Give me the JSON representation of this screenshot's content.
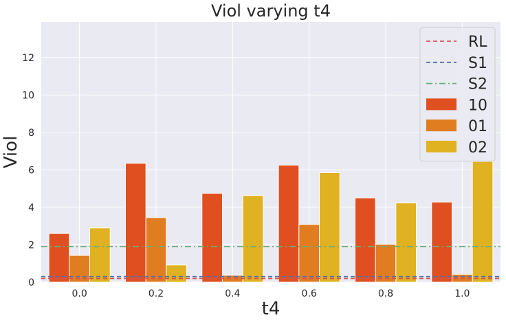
{
  "chart_data": {
    "type": "bar",
    "title": "Viol varying t4",
    "xlabel": "t4",
    "ylabel": "Viol",
    "categories": [
      "0.0",
      "0.2",
      "0.4",
      "0.6",
      "0.8",
      "1.0"
    ],
    "ylim": [
      0,
      13.9
    ],
    "yticks": [
      "0",
      "2",
      "4",
      "6",
      "8",
      "10",
      "12"
    ],
    "grid": true,
    "legend_position": "top-right",
    "series": [
      {
        "name": "10",
        "color": "#e04f1f",
        "values": [
          2.6,
          6.35,
          4.75,
          6.25,
          4.5,
          4.28
        ]
      },
      {
        "name": "01",
        "color": "#e07d20",
        "values": [
          1.43,
          3.45,
          0.37,
          3.08,
          2.02,
          0.42
        ]
      },
      {
        "name": "02",
        "color": "#e0b120",
        "values": [
          2.9,
          0.92,
          4.63,
          5.85,
          4.23,
          6.45
        ]
      }
    ],
    "reference_lines": [
      {
        "name": "RL",
        "value": 0.2,
        "color": "#d9534f",
        "style": "dashed"
      },
      {
        "name": "S1",
        "value": 0.3,
        "color": "#4c72b0",
        "style": "dashed"
      },
      {
        "name": "S2",
        "value": 1.9,
        "color": "#6aaf78",
        "style": "dashdot"
      }
    ]
  }
}
